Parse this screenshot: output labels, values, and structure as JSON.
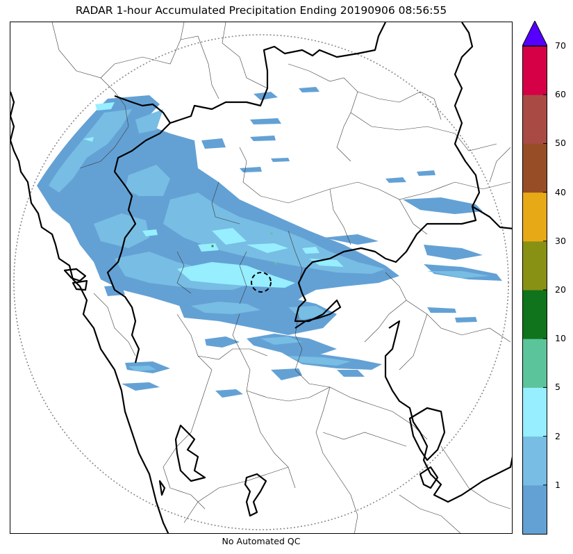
{
  "title": "RADAR 1-hour Accumulated Precipitation Ending 20190906 08:56:55",
  "footer": "No Automated QC",
  "colorbar": {
    "labels": [
      "1",
      "2",
      "5",
      "10",
      "20",
      "30",
      "40",
      "50",
      "60",
      "70"
    ],
    "bins": [
      {
        "color": "#63a1d5"
      },
      {
        "color": "#78bde3"
      },
      {
        "color": "#96eeff"
      },
      {
        "color": "#5cc49b"
      },
      {
        "color": "#0f741b"
      },
      {
        "color": "#899114"
      },
      {
        "color": "#e8a917"
      },
      {
        "color": "#974e26"
      },
      {
        "color": "#a94b44"
      },
      {
        "color": "#d50046"
      }
    ],
    "extend_color": "#5500ff"
  },
  "colors": {
    "coast_and_state_border": "#000000",
    "district_border": "#3a3a3a",
    "range_ring": "#888888"
  }
}
